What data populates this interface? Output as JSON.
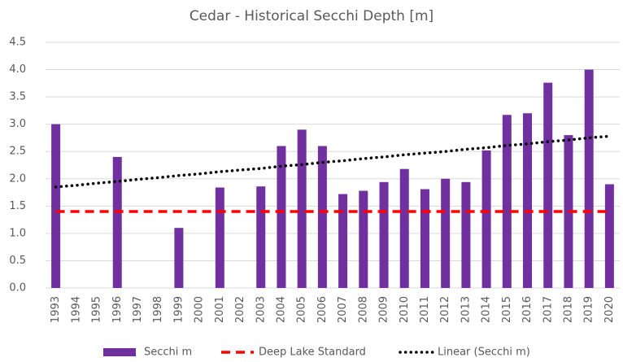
{
  "chart_data": {
    "type": "bar",
    "title": "Cedar - Historical Secchi Depth [m]",
    "categories": [
      "1993",
      "1994",
      "1995",
      "1996",
      "1997",
      "1998",
      "1999",
      "2000",
      "2001",
      "2002",
      "2003",
      "2004",
      "2005",
      "2006",
      "2007",
      "2008",
      "2009",
      "2010",
      "2011",
      "2012",
      "2013",
      "2014",
      "2015",
      "2016",
      "2017",
      "2018",
      "2019",
      "2020"
    ],
    "series": [
      {
        "name": "Secchi m",
        "type": "bar",
        "color": "#7030a0",
        "values": [
          3.0,
          null,
          null,
          2.4,
          null,
          null,
          1.1,
          null,
          1.84,
          null,
          1.86,
          2.6,
          2.9,
          2.6,
          1.72,
          1.78,
          1.94,
          2.18,
          1.81,
          2.0,
          1.94,
          2.52,
          3.17,
          3.2,
          3.76,
          2.8,
          4.0,
          1.9
        ]
      },
      {
        "name": "Deep Lake Standard",
        "type": "line",
        "style": "dashed",
        "color": "#ff0000",
        "values": [
          1.4,
          1.4,
          1.4,
          1.4,
          1.4,
          1.4,
          1.4,
          1.4,
          1.4,
          1.4,
          1.4,
          1.4,
          1.4,
          1.4,
          1.4,
          1.4,
          1.4,
          1.4,
          1.4,
          1.4,
          1.4,
          1.4,
          1.4,
          1.4,
          1.4,
          1.4,
          1.4,
          1.4
        ]
      },
      {
        "name": "Linear (Secchi m)",
        "type": "line",
        "style": "dotted",
        "color": "#000000",
        "values": [
          1.85,
          1.88,
          1.92,
          1.95,
          1.99,
          2.02,
          2.06,
          2.09,
          2.13,
          2.16,
          2.19,
          2.23,
          2.26,
          2.3,
          2.33,
          2.37,
          2.4,
          2.44,
          2.47,
          2.5,
          2.54,
          2.57,
          2.61,
          2.64,
          2.68,
          2.71,
          2.75,
          2.78
        ]
      }
    ],
    "ylim": [
      0,
      4.5
    ],
    "yticks": [
      {
        "value": 0,
        "label": "0.0"
      },
      {
        "value": 0.5,
        "label": "0.5"
      },
      {
        "value": 1,
        "label": "1.0"
      },
      {
        "value": 1.5,
        "label": "1.5"
      },
      {
        "value": 2,
        "label": "2.0"
      },
      {
        "value": 2.5,
        "label": "2.5"
      },
      {
        "value": 3,
        "label": "3.0"
      },
      {
        "value": 3.5,
        "label": "3.5"
      },
      {
        "value": 4,
        "label": "4.0"
      },
      {
        "value": 4.5,
        "label": "4.5"
      }
    ],
    "grid": true,
    "legend": "bottom"
  }
}
